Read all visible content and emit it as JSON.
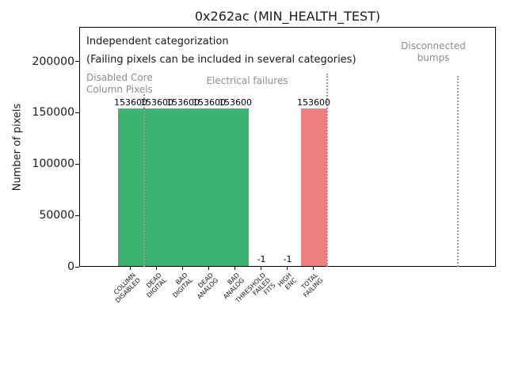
{
  "figure": {
    "title": "0x262ac (MIN_HEALTH_TEST)"
  },
  "chart_data": {
    "type": "bar",
    "title": "0x262ac (MIN_HEALTH_TEST)",
    "xlabel": "",
    "ylabel": "Number of pixels",
    "ylim": [
      0,
      233600
    ],
    "yticks": [
      "0",
      "50000",
      "100000",
      "150000",
      "200000"
    ],
    "ytick_values": [
      0,
      50000,
      100000,
      150000,
      200000
    ],
    "grid": false,
    "legend": null,
    "categories": [
      [
        "COLUMN",
        "DISABLED"
      ],
      [
        "DEAD",
        "DIGITAL"
      ],
      [
        "BAD",
        "DIGITAL"
      ],
      [
        "DEAD",
        "ANALOG"
      ],
      [
        "BAD",
        "ANALOG"
      ],
      [
        "THRESHOLD",
        "FAILED",
        "FITS"
      ],
      [
        "HIGH",
        "ENC"
      ],
      [
        "TOTAL",
        "FAILING"
      ]
    ],
    "values": [
      153600,
      153600,
      153600,
      153600,
      153600,
      -1,
      -1,
      153600
    ],
    "bar_labels": [
      "153600",
      "153600",
      "153600",
      "153600",
      "153600",
      "-1",
      "-1",
      "153600"
    ],
    "bar_colors": [
      "#3cb371",
      "#3cb371",
      "#3cb371",
      "#3cb371",
      "#3cb371",
      "#3cb371",
      "#3cb371",
      "#f08080"
    ],
    "annotations": {
      "note_line1": "Independent categorization",
      "note_line2": "(Failing pixels can be included in several categories)",
      "sections": [
        {
          "lines": [
            "Disabled Core",
            "Column Pixels"
          ]
        },
        {
          "lines": [
            "Electrical failures"
          ]
        },
        {
          "lines": [
            "Disconnected",
            "bumps"
          ]
        }
      ]
    },
    "separators_x": [
      0.5,
      7.5,
      12.5
    ]
  },
  "colors": {
    "bar_green": "#3cb371",
    "bar_red": "#f08080",
    "section_text": "#8c8c8c",
    "separator_line": "#999999",
    "spine": "#000000"
  }
}
